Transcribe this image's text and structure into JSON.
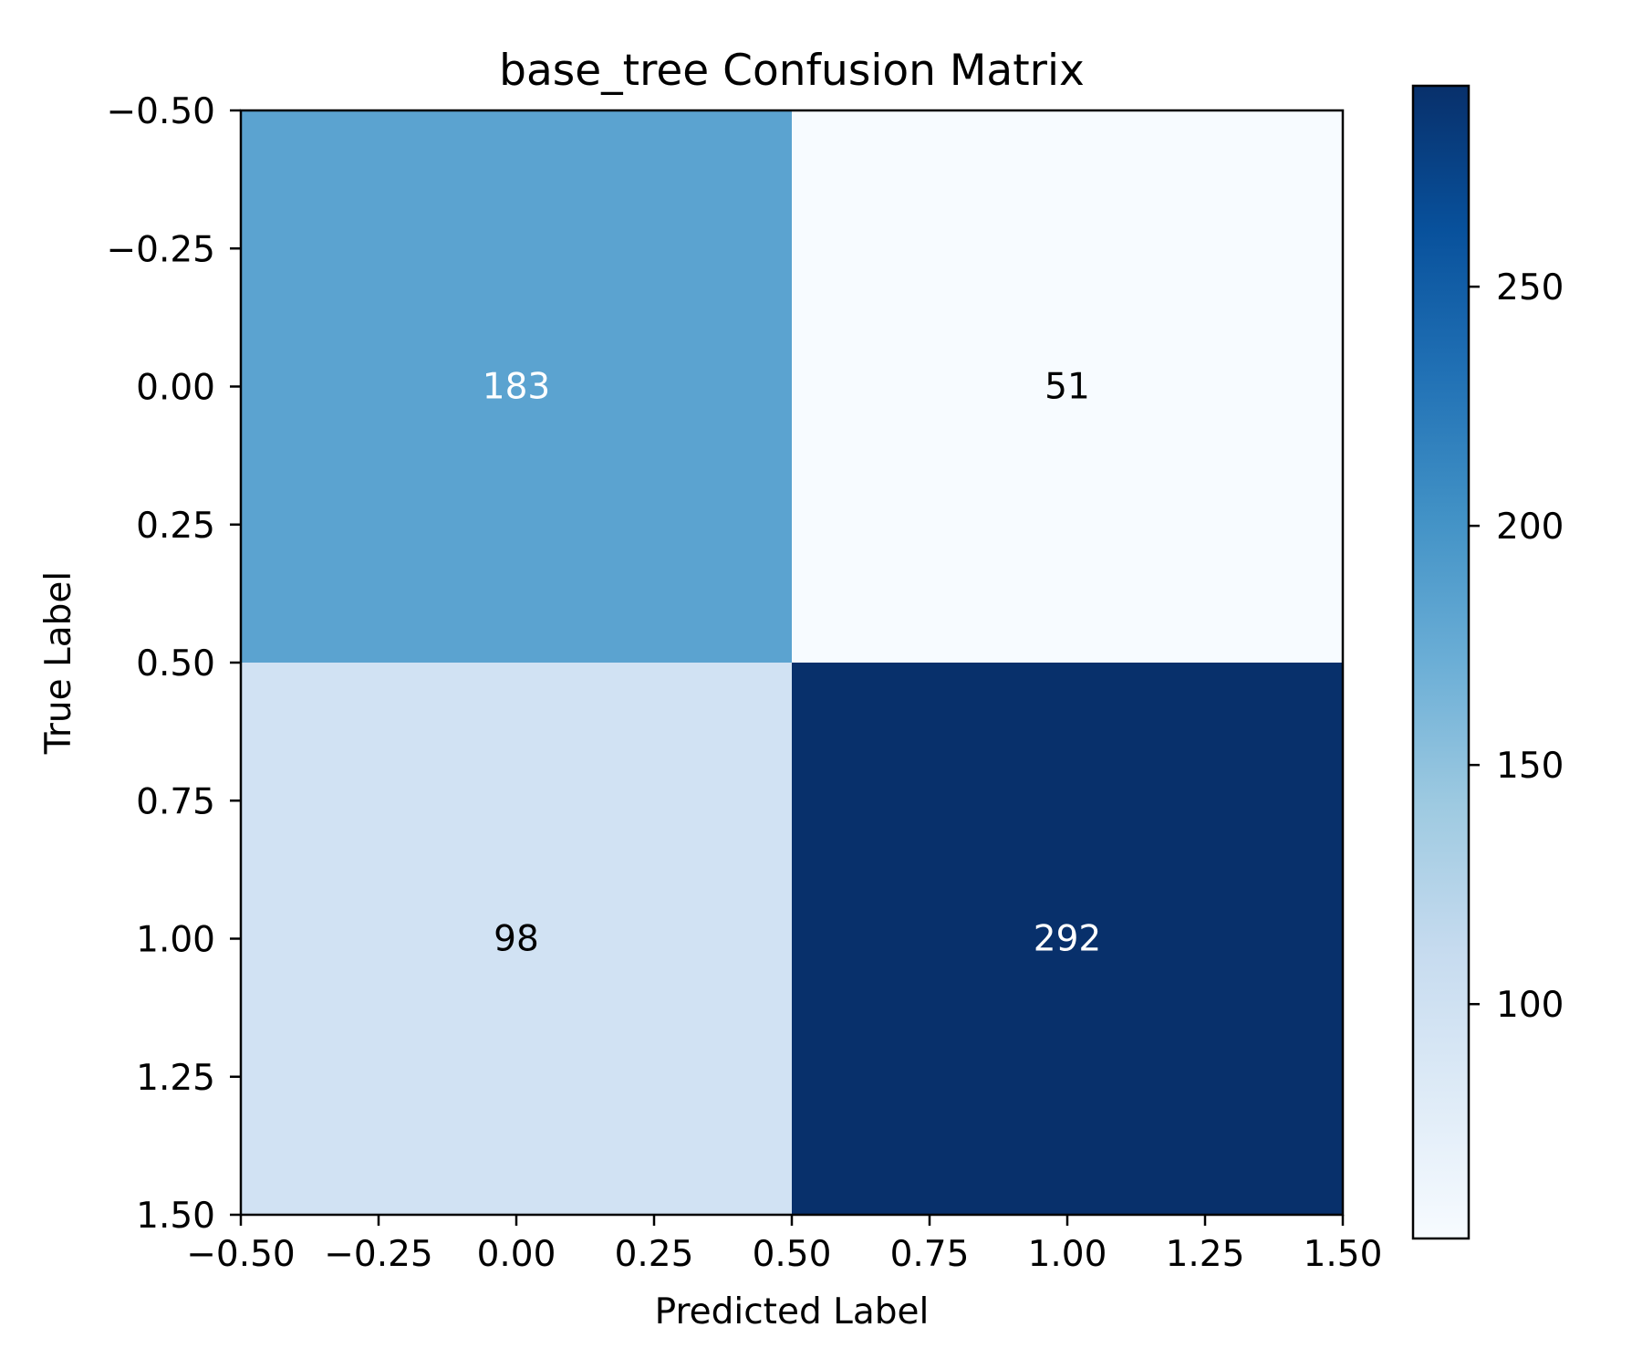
{
  "chart_data": {
    "type": "heatmap",
    "title": "base_tree Confusion Matrix",
    "xlabel": "Predicted Label",
    "ylabel": "True Label",
    "matrix": [
      [
        183,
        51
      ],
      [
        98,
        292
      ]
    ],
    "xlim": [
      -0.5,
      1.5
    ],
    "ylim": [
      1.5,
      -0.5
    ],
    "x_ticks": [
      "−0.50",
      "−0.25",
      "0.00",
      "0.25",
      "0.50",
      "0.75",
      "1.00",
      "1.25",
      "1.50"
    ],
    "y_ticks": [
      "−0.50",
      "−0.25",
      "0.00",
      "0.25",
      "0.50",
      "0.75",
      "1.00",
      "1.25",
      "1.50"
    ],
    "colormap": "Blues",
    "colorbar": {
      "range": [
        51,
        292
      ],
      "ticks": [
        "100",
        "150",
        "200",
        "250"
      ]
    },
    "grid": false
  }
}
